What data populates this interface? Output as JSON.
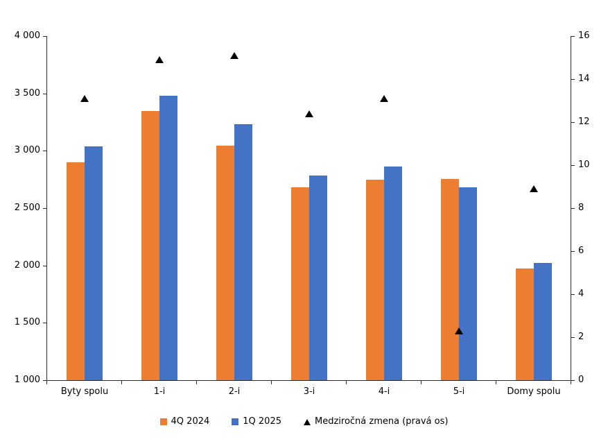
{
  "chart_data": {
    "type": "bar",
    "subtype": "grouped bars with scatter overlay on secondary axis",
    "title": "",
    "xlabel": "",
    "ylabel": "",
    "grid": false,
    "legend_position": "bottom",
    "categories": [
      "Byty spolu",
      "1-i",
      "2-i",
      "3-i",
      "4-i",
      "5-i",
      "Domy spolu"
    ],
    "series": [
      {
        "name": "4Q 2024",
        "type": "bar",
        "axis": "left",
        "color": "#ED7D31",
        "values": [
          2900,
          3345,
          3045,
          2680,
          2750,
          2755,
          1975
        ]
      },
      {
        "name": "1Q 2025",
        "type": "bar",
        "axis": "left",
        "color": "#4472C4",
        "values": [
          3040,
          3480,
          3230,
          2785,
          2865,
          2680,
          2025
        ]
      },
      {
        "name": "Medziročná zmena (pravá os)",
        "type": "scatter-triangle",
        "axis": "right",
        "color": "#000000",
        "values": [
          13.1,
          14.9,
          15.1,
          12.4,
          13.1,
          2.3,
          8.9
        ]
      }
    ],
    "left_axis": {
      "min": 1000,
      "max": 4000,
      "step": 500,
      "tick_labels_top_to_bottom": [
        "4 000",
        "3 500",
        "3 000",
        "2 500",
        "2 000",
        "1 500",
        "1 000"
      ]
    },
    "right_axis": {
      "min": 0,
      "max": 16,
      "step": 2,
      "tick_labels_top_to_bottom": [
        "16",
        "14",
        "12",
        "10",
        "8",
        "6",
        "4",
        "2",
        "0"
      ]
    }
  }
}
